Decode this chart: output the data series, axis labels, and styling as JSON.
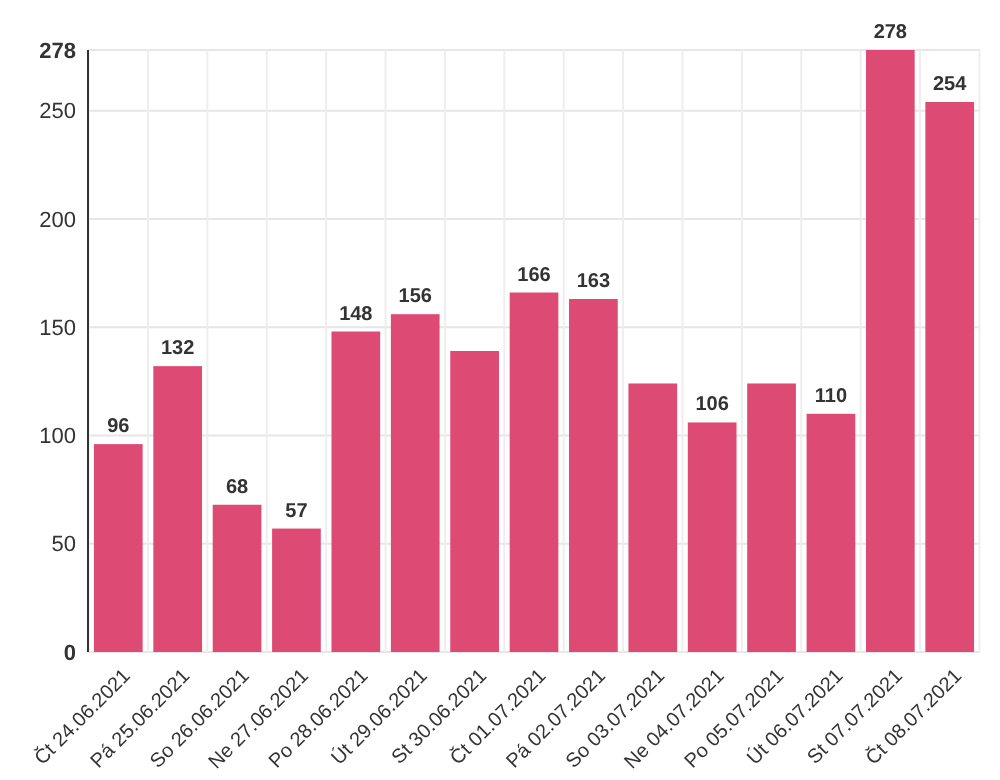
{
  "chart_data": {
    "type": "bar",
    "categories": [
      "Čt 24.06.2021",
      "Pá 25.06.2021",
      "So 26.06.2021",
      "Ne 27.06.2021",
      "Po 28.06.2021",
      "Út 29.06.2021",
      "St 30.06.2021",
      "Čt 01.07.2021",
      "Pá 02.07.2021",
      "So 03.07.2021",
      "Ne 04.07.2021",
      "Po 05.07.2021",
      "Út 06.07.2021",
      "St 07.07.2021",
      "Čt 08.07.2021"
    ],
    "values": [
      96,
      132,
      68,
      57,
      148,
      156,
      139,
      166,
      163,
      124,
      106,
      124,
      110,
      278,
      254
    ],
    "value_labels": [
      "96",
      "132",
      "68",
      "57",
      "148",
      "156",
      null,
      "166",
      "163",
      null,
      "106",
      null,
      "110",
      "278",
      "254"
    ],
    "color": "#dd4a74",
    "ylim": [
      0,
      278
    ],
    "yticks": [
      0,
      50,
      100,
      150,
      200,
      250,
      278
    ],
    "grid": true
  }
}
